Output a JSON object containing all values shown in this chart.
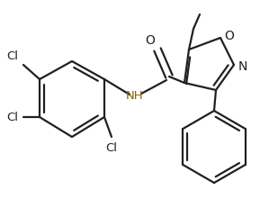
{
  "bg_color": "#ffffff",
  "bond_color": "#231f20",
  "nh_color": "#8B6400",
  "lw": 1.6,
  "xlim": [
    0,
    289
  ],
  "ylim": [
    0,
    221
  ]
}
